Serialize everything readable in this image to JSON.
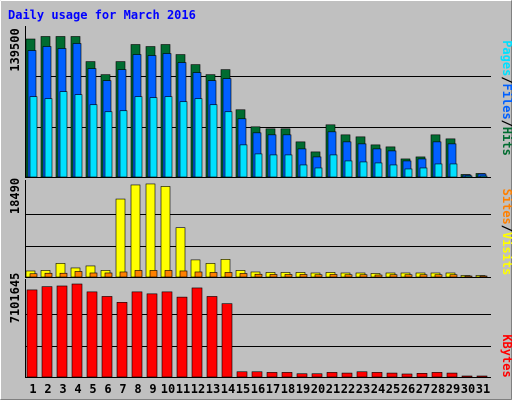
{
  "title": "Daily usage for March 2016",
  "colors": {
    "background": "#c0c0c0",
    "title": "#0000ff",
    "hits": "#006c30",
    "files": "#0060ff",
    "pages": "#00e0ff",
    "visits": "#ffff00",
    "sites": "#ff8000",
    "kbytes": "#ff0000"
  },
  "chart_data": [
    {
      "type": "bar",
      "name": "hits-files-pages",
      "y_max_label": "139500",
      "ylim": [
        0,
        139500
      ],
      "grid": true,
      "legend": "right",
      "legend_labels": [
        "Pages",
        "/",
        "Files",
        "/",
        "Hits"
      ],
      "categories": [
        "1",
        "2",
        "3",
        "4",
        "5",
        "6",
        "7",
        "8",
        "9",
        "10",
        "11",
        "12",
        "13",
        "14",
        "15",
        "16",
        "17",
        "18",
        "19",
        "20",
        "21",
        "22",
        "23",
        "24",
        "25",
        "26",
        "27",
        "28",
        "29",
        "30",
        "31"
      ],
      "series": [
        {
          "name": "Hits",
          "values": [
            137500,
            140000,
            140000,
            140000,
            115000,
            102000,
            115000,
            132000,
            130000,
            132000,
            122000,
            112000,
            102000,
            107000,
            67000,
            50000,
            48000,
            48000,
            35000,
            25000,
            52000,
            42000,
            40000,
            32000,
            30000,
            18000,
            20000,
            42000,
            38000,
            2500,
            3500
          ]
        },
        {
          "name": "Files",
          "values": [
            126000,
            130000,
            128000,
            133000,
            108000,
            96000,
            107000,
            122000,
            121000,
            123000,
            114000,
            104000,
            96000,
            98000,
            58000,
            44000,
            42000,
            42000,
            28000,
            20000,
            45000,
            35000,
            33000,
            28000,
            26000,
            16000,
            18000,
            35000,
            33000,
            2000,
            3000
          ]
        },
        {
          "name": "Pages",
          "values": [
            80000,
            78000,
            85000,
            82000,
            72000,
            65000,
            66000,
            80000,
            79000,
            80000,
            75000,
            78000,
            72000,
            65000,
            32000,
            23000,
            22000,
            22000,
            12000,
            9000,
            22000,
            16000,
            15000,
            14000,
            12000,
            8000,
            9000,
            13000,
            13000,
            500,
            800
          ]
        }
      ]
    },
    {
      "type": "bar",
      "name": "visits-sites",
      "y_max_label": "18490",
      "ylim": [
        0,
        18490
      ],
      "grid": true,
      "legend": "right",
      "legend_labels": [
        "Sites",
        "/",
        "Visits"
      ],
      "categories": [
        "1",
        "2",
        "3",
        "4",
        "5",
        "6",
        "7",
        "8",
        "9",
        "10",
        "11",
        "12",
        "13",
        "14",
        "15",
        "16",
        "17",
        "18",
        "19",
        "20",
        "21",
        "22",
        "23",
        "24",
        "25",
        "26",
        "27",
        "28",
        "29",
        "30",
        "31"
      ],
      "series": [
        {
          "name": "Visits",
          "values": [
            1200,
            1300,
            2700,
            1800,
            2200,
            1300,
            15500,
            18300,
            18500,
            18000,
            9800,
            3400,
            2700,
            3500,
            1300,
            1000,
            900,
            900,
            900,
            800,
            900,
            800,
            800,
            700,
            800,
            800,
            800,
            800,
            800,
            300,
            300
          ]
        },
        {
          "name": "Sites",
          "values": [
            650,
            750,
            750,
            1100,
            800,
            800,
            1000,
            1300,
            1300,
            1300,
            1200,
            1000,
            900,
            900,
            700,
            550,
            500,
            500,
            500,
            450,
            500,
            450,
            450,
            400,
            450,
            450,
            450,
            450,
            450,
            200,
            200
          ]
        }
      ]
    },
    {
      "type": "bar",
      "name": "kbytes",
      "y_max_label": "7101645",
      "ylim": [
        0,
        7101645
      ],
      "grid": true,
      "legend": "right",
      "legend_labels": [
        "KBytes"
      ],
      "categories": [
        "1",
        "2",
        "3",
        "4",
        "5",
        "6",
        "7",
        "8",
        "9",
        "10",
        "11",
        "12",
        "13",
        "14",
        "15",
        "16",
        "17",
        "18",
        "19",
        "20",
        "21",
        "22",
        "23",
        "24",
        "25",
        "26",
        "27",
        "28",
        "29",
        "30",
        "31"
      ],
      "series": [
        {
          "name": "KBytes",
          "values": [
            6650000,
            6900000,
            6950000,
            7101645,
            6500000,
            6150000,
            5700000,
            6500000,
            6350000,
            6500000,
            6100000,
            6800000,
            6150000,
            5600000,
            400000,
            400000,
            350000,
            350000,
            250000,
            250000,
            350000,
            300000,
            400000,
            350000,
            300000,
            230000,
            280000,
            350000,
            300000,
            50000,
            50000
          ]
        }
      ]
    }
  ]
}
